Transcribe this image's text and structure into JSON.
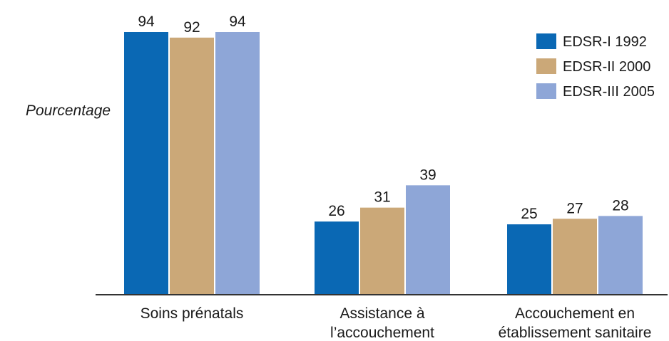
{
  "chart_data": {
    "type": "bar",
    "ylabel": "Pourcentage",
    "categories": [
      [
        "Soins prénatals"
      ],
      [
        "Assistance à",
        "l’accouchement"
      ],
      [
        "Accouchement en",
        "établissement sanitaire"
      ]
    ],
    "series": [
      {
        "name": "EDSR-I 1992",
        "color": "#0a68b4",
        "values": [
          94,
          26,
          25
        ]
      },
      {
        "name": "EDSR-II 2000",
        "color": "#cba878",
        "values": [
          92,
          31,
          27
        ]
      },
      {
        "name": "EDSR-III 2005",
        "color": "#8ea6d7",
        "values": [
          94,
          39,
          28
        ]
      }
    ],
    "ylim": [
      0,
      94
    ],
    "legend": "top-right",
    "grid": false
  }
}
